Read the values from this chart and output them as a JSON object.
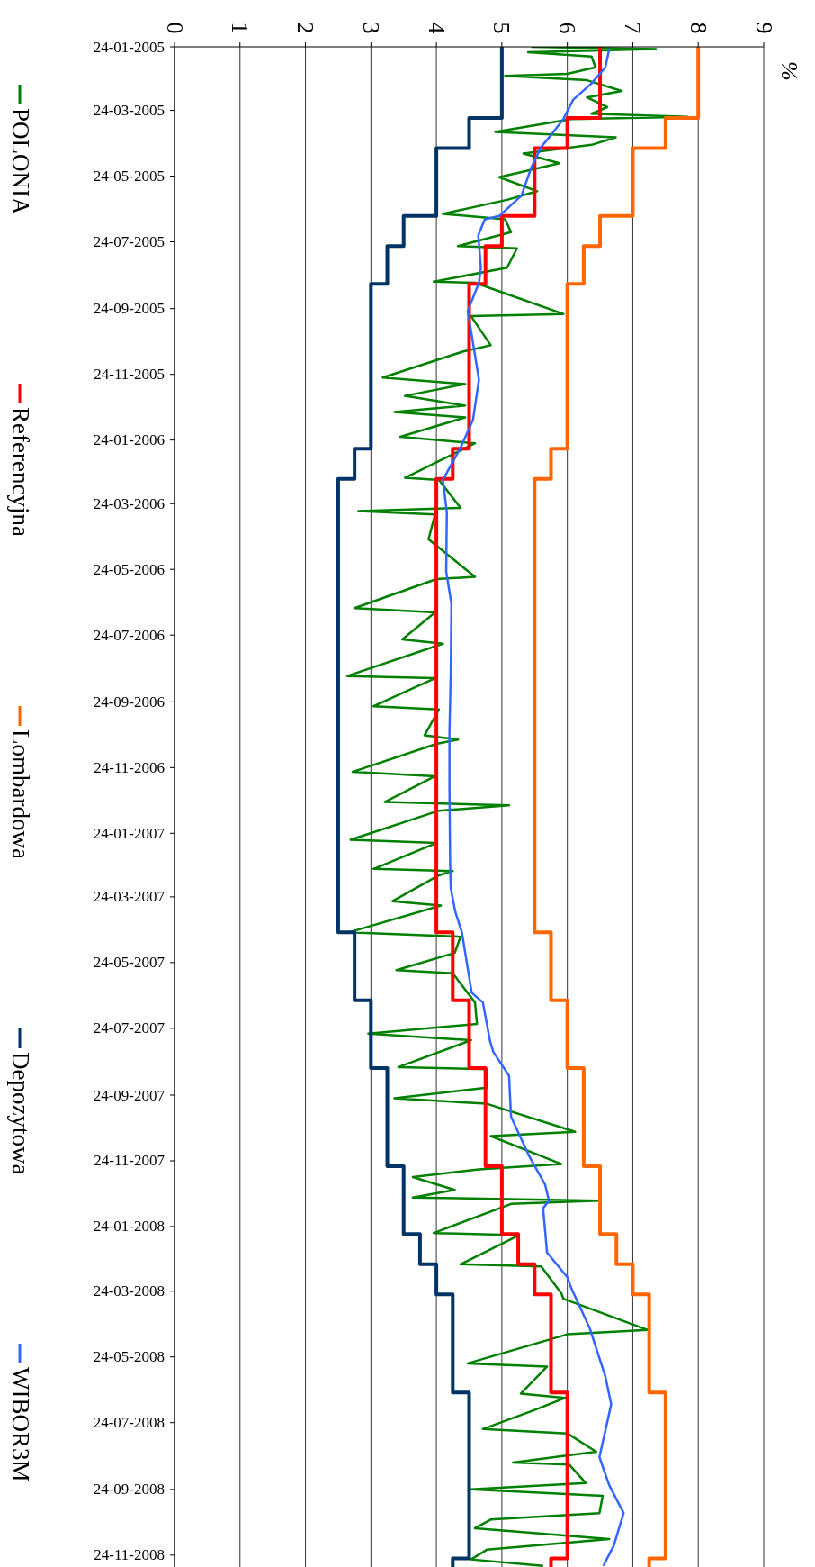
{
  "chart_data": {
    "type": "line",
    "orientation": "horizontal",
    "annotations": [
      "%"
    ],
    "ylim": [
      "2008-12-05",
      "2005-01-24"
    ],
    "xlim": [
      0,
      9
    ],
    "xticks": [
      0,
      1,
      2,
      3,
      4,
      5,
      6,
      7,
      8,
      9
    ],
    "yticks": [
      {
        "value": "2005-01-24",
        "label": "24-01-2005"
      },
      {
        "value": "2005-03-24",
        "label": "24-03-2005"
      },
      {
        "value": "2005-05-24",
        "label": "24-05-2005"
      },
      {
        "value": "2005-07-24",
        "label": "24-07-2005"
      },
      {
        "value": "2005-09-24",
        "label": "24-09-2005"
      },
      {
        "value": "2005-11-24",
        "label": "24-11-2005"
      },
      {
        "value": "2006-01-24",
        "label": "24-01-2006"
      },
      {
        "value": "2006-03-24",
        "label": "24-03-2006"
      },
      {
        "value": "2006-05-24",
        "label": "24-05-2006"
      },
      {
        "value": "2006-07-24",
        "label": "24-07-2006"
      },
      {
        "value": "2006-09-24",
        "label": "24-09-2006"
      },
      {
        "value": "2006-11-24",
        "label": "24-11-2006"
      },
      {
        "value": "2007-01-24",
        "label": "24-01-2007"
      },
      {
        "value": "2007-03-24",
        "label": "24-03-2007"
      },
      {
        "value": "2007-05-24",
        "label": "24-05-2007"
      },
      {
        "value": "2007-07-24",
        "label": "24-07-2007"
      },
      {
        "value": "2007-09-24",
        "label": "24-09-2007"
      },
      {
        "value": "2007-11-24",
        "label": "24-11-2007"
      },
      {
        "value": "2008-01-24",
        "label": "24-01-2008"
      },
      {
        "value": "2008-03-24",
        "label": "24-03-2008"
      },
      {
        "value": "2008-05-24",
        "label": "24-05-2008"
      },
      {
        "value": "2008-07-24",
        "label": "24-07-2008"
      },
      {
        "value": "2008-09-24",
        "label": "24-09-2008"
      },
      {
        "value": "2008-11-24",
        "label": "24-11-2008"
      }
    ],
    "grid": "x",
    "legend": "left",
    "marker": "none",
    "line_style": "solid",
    "series": [
      {
        "name": "POLONIA",
        "type": "line",
        "color": "#008000",
        "x": [
          "2005-01-24",
          "2005-01-26",
          "2005-01-29",
          "2005-02-02",
          "2005-02-12",
          "2005-02-18",
          "2005-02-20",
          "2005-02-24",
          "2005-03-06",
          "2005-03-12",
          "2005-03-21",
          "2005-03-27",
          "2005-03-30",
          "2005-04-01",
          "2005-04-13",
          "2005-04-18",
          "2005-04-25",
          "2005-05-03",
          "2005-05-12",
          "2005-05-25",
          "2005-06-07",
          "2005-06-15",
          "2005-06-28",
          "2005-07-03",
          "2005-07-15",
          "2005-07-28",
          "2005-07-30",
          "2005-08-17",
          "2005-08-30",
          "2005-08-31",
          "2005-09-29",
          "2005-10-01",
          "2005-10-28",
          "2005-11-03",
          "2005-11-27",
          "2005-12-03",
          "2005-12-14",
          "2005-12-23",
          "2005-12-29",
          "2006-01-03",
          "2006-01-21",
          "2006-01-27",
          "2006-02-28",
          "2006-03-02",
          "2006-03-28",
          "2006-03-31",
          "2006-04-03",
          "2006-04-26",
          "2006-05-31",
          "2006-06-02",
          "2006-06-29",
          "2006-07-03",
          "2006-07-28",
          "2006-08-01",
          "2006-08-31",
          "2006-09-02",
          "2006-09-28",
          "2006-10-01",
          "2006-10-25",
          "2006-10-29",
          "2006-11-02",
          "2006-11-28",
          "2006-12-02",
          "2006-12-26",
          "2006-12-29",
          "2007-01-03",
          "2007-01-30",
          "2007-02-02",
          "2007-02-26",
          "2007-02-28",
          "2007-03-04",
          "2007-03-28",
          "2007-04-01",
          "2007-04-26",
          "2007-04-30",
          "2007-05-15",
          "2007-05-31",
          "2007-06-03",
          "2007-06-30",
          "2007-07-20",
          "2007-07-29",
          "2007-08-04",
          "2007-08-29",
          "2007-08-31",
          "2007-09-17",
          "2007-09-27",
          "2007-10-02",
          "2007-10-28",
          "2007-11-01",
          "2007-11-27",
          "2007-12-02",
          "2007-12-09",
          "2007-12-21",
          "2007-12-28",
          "2007-12-31",
          "2008-01-03",
          "2008-01-30",
          "2008-02-01",
          "2008-02-28",
          "2008-03-01",
          "2008-03-26",
          "2008-03-31",
          "2008-04-29",
          "2008-05-03",
          "2008-05-30",
          "2008-06-02",
          "2008-06-27",
          "2008-07-01",
          "2008-07-12",
          "2008-07-30",
          "2008-08-03",
          "2008-08-20",
          "2008-08-30",
          "2008-09-01",
          "2008-09-18",
          "2008-09-24",
          "2008-09-30",
          "2008-10-16",
          "2008-10-22",
          "2008-10-30",
          "2008-11-09",
          "2008-11-19",
          "2008-11-28",
          "2008-12-04"
        ],
        "values": [
          5.45,
          7.35,
          5.4,
          6.37,
          6.43,
          6.0,
          5.05,
          6.3,
          6.83,
          6.3,
          6.61,
          6.37,
          7.84,
          6.06,
          4.9,
          6.74,
          6.37,
          5.33,
          5.88,
          4.96,
          5.54,
          5.08,
          4.1,
          5.05,
          5.14,
          4.33,
          5.23,
          5.08,
          3.96,
          4.59,
          5.94,
          4.53,
          4.83,
          4.4,
          3.18,
          4.44,
          3.52,
          4.44,
          3.36,
          4.44,
          3.45,
          4.59,
          3.52,
          4.04,
          4.37,
          2.81,
          3.98,
          3.88,
          4.59,
          4.0,
          2.75,
          3.98,
          3.48,
          4.1,
          2.64,
          3.98,
          3.04,
          4.04,
          3.82,
          4.33,
          4.0,
          2.72,
          3.98,
          3.21,
          5.11,
          4.04,
          2.69,
          4.0,
          3.04,
          4.25,
          4.04,
          3.33,
          4.07,
          2.66,
          4.37,
          4.28,
          3.39,
          4.25,
          4.59,
          4.62,
          2.96,
          4.53,
          3.42,
          4.77,
          4.77,
          3.36,
          4.77,
          6.12,
          4.83,
          5.91,
          4.65,
          3.64,
          4.28,
          3.64,
          6.49,
          5.14,
          3.96,
          5.26,
          4.37,
          5.6,
          5.91,
          5.94,
          7.23,
          6.0,
          4.48,
          5.69,
          5.29,
          5.97,
          5.51,
          4.71,
          6.0,
          6.44,
          5.17,
          6.03,
          6.28,
          4.53,
          6.54,
          6.49,
          4.83,
          4.59,
          6.64,
          4.77,
          4.53,
          5.63
        ]
      },
      {
        "name": "Referencyjna",
        "type": "step",
        "color": "#ff0000",
        "x": [
          "2005-01-24",
          "2005-03-31",
          "2005-04-28",
          "2005-06-30",
          "2005-07-28",
          "2005-09-01",
          "2006-02-01",
          "2006-03-01",
          "2007-04-26",
          "2007-06-28",
          "2007-08-30",
          "2007-11-29",
          "2008-01-31",
          "2008-02-28",
          "2008-03-27",
          "2008-06-26",
          "2008-11-27",
          "2008-12-05"
        ],
        "values": [
          6.5,
          6.0,
          5.5,
          5.0,
          4.75,
          4.5,
          4.25,
          4.0,
          4.25,
          4.5,
          4.75,
          5.0,
          5.25,
          5.5,
          5.75,
          6.0,
          5.75,
          5.75
        ]
      },
      {
        "name": "Lombardowa",
        "type": "step",
        "color": "#ff6600",
        "x": [
          "2005-01-24",
          "2005-03-31",
          "2005-04-28",
          "2005-06-30",
          "2005-07-28",
          "2005-09-01",
          "2006-02-01",
          "2006-03-01",
          "2007-04-26",
          "2007-06-28",
          "2007-08-30",
          "2007-11-29",
          "2008-01-31",
          "2008-02-28",
          "2008-03-27",
          "2008-06-26",
          "2008-11-27",
          "2008-12-05"
        ],
        "values": [
          8.0,
          7.5,
          7.0,
          6.5,
          6.25,
          6.0,
          5.75,
          5.5,
          5.75,
          6.0,
          6.25,
          6.5,
          6.75,
          7.0,
          7.25,
          7.5,
          7.25,
          7.25
        ]
      },
      {
        "name": "Depozytowa",
        "type": "step",
        "color": "#003366",
        "x": [
          "2005-01-24",
          "2005-03-31",
          "2005-04-28",
          "2005-06-30",
          "2005-07-28",
          "2005-09-01",
          "2006-02-01",
          "2006-03-01",
          "2007-04-26",
          "2007-06-28",
          "2007-08-30",
          "2007-11-29",
          "2008-01-31",
          "2008-02-28",
          "2008-03-27",
          "2008-06-26",
          "2008-11-27",
          "2008-12-05"
        ],
        "values": [
          5.0,
          4.5,
          4.0,
          3.5,
          3.25,
          3.0,
          2.75,
          2.5,
          2.75,
          3.0,
          3.25,
          3.5,
          3.75,
          4.0,
          4.25,
          4.5,
          4.25,
          4.25
        ]
      },
      {
        "name": "WIBOR3M",
        "type": "line",
        "color": "#3366ff",
        "x": [
          "2005-01-26",
          "2005-02-12",
          "2005-02-27",
          "2005-03-14",
          "2005-04-01",
          "2005-04-16",
          "2005-04-27",
          "2005-05-16",
          "2005-06-11",
          "2005-06-30",
          "2005-07-03",
          "2005-07-18",
          "2005-08-17",
          "2005-08-31",
          "2005-09-26",
          "2005-10-26",
          "2005-11-29",
          "2006-01-05",
          "2006-01-31",
          "2006-03-02",
          "2006-04-01",
          "2006-05-26",
          "2006-06-25",
          "2006-08-27",
          "2006-10-22",
          "2006-12-13",
          "2007-02-21",
          "2007-03-16",
          "2007-04-07",
          "2007-04-26",
          "2007-05-26",
          "2007-06-21",
          "2007-06-30",
          "2007-08-05",
          "2007-08-15",
          "2007-09-06",
          "2007-10-14",
          "2007-11-20",
          "2007-12-16",
          "2007-12-31",
          "2008-01-07",
          "2008-02-17",
          "2008-03-11",
          "2008-03-21",
          "2008-04-27",
          "2008-06-11",
          "2008-07-07",
          "2008-08-25",
          "2008-09-20",
          "2008-10-16",
          "2008-11-15",
          "2008-12-04"
        ],
        "values": [
          6.64,
          6.58,
          6.37,
          6.09,
          5.94,
          5.75,
          5.6,
          5.45,
          5.3,
          4.96,
          4.74,
          4.64,
          4.68,
          4.65,
          4.48,
          4.56,
          4.65,
          4.56,
          4.37,
          4.1,
          4.16,
          4.15,
          4.23,
          4.22,
          4.2,
          4.2,
          4.21,
          4.22,
          4.29,
          4.39,
          4.47,
          4.54,
          4.71,
          4.82,
          4.87,
          5.11,
          5.14,
          5.42,
          5.66,
          5.72,
          5.63,
          5.69,
          6.0,
          6.06,
          6.34,
          6.58,
          6.67,
          6.49,
          6.64,
          6.86,
          6.71,
          6.55
        ]
      }
    ]
  }
}
